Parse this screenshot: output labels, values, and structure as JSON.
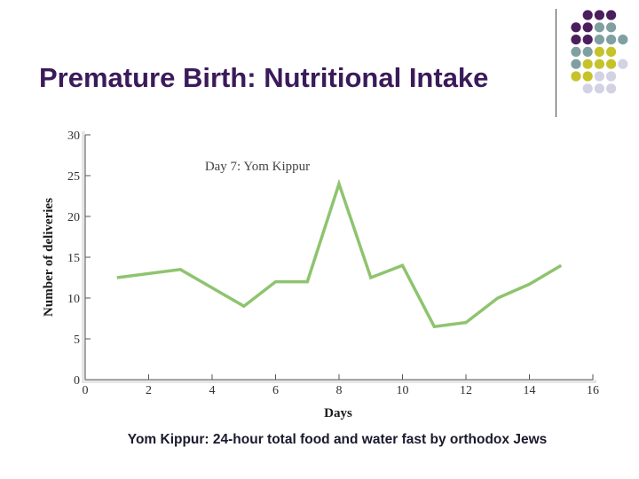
{
  "slide": {
    "title": "Premature Birth: Nutritional Intake",
    "caption": "Yom Kippur: 24-hour total food and water fast by orthodox Jews",
    "accent": "#3b1a5a",
    "dot_colors": {
      "purple": "#4a1f5c",
      "teal": "#7f9fa1",
      "olive": "#c6c22a",
      "lavender": "#d2d2e4"
    }
  },
  "chart_data": {
    "type": "line",
    "title": "",
    "annotation": "Day 7: Yom Kippur",
    "xlabel": "Days",
    "ylabel": "Number of deliveries",
    "xlim": [
      0,
      16
    ],
    "ylim": [
      0,
      30
    ],
    "xticks": [
      0,
      2,
      4,
      6,
      8,
      10,
      12,
      14,
      16
    ],
    "yticks": [
      0,
      5,
      10,
      15,
      20,
      25,
      30
    ],
    "grid": false,
    "series": [
      {
        "name": "",
        "color": "#8ec46e",
        "x": [
          1,
          3,
          5,
          6,
          7,
          8,
          9,
          10,
          11,
          12,
          13,
          14,
          15
        ],
        "y": [
          12.5,
          13.5,
          9,
          12,
          12,
          24,
          12.5,
          14,
          6.5,
          7,
          10,
          11.7,
          14
        ]
      }
    ]
  }
}
